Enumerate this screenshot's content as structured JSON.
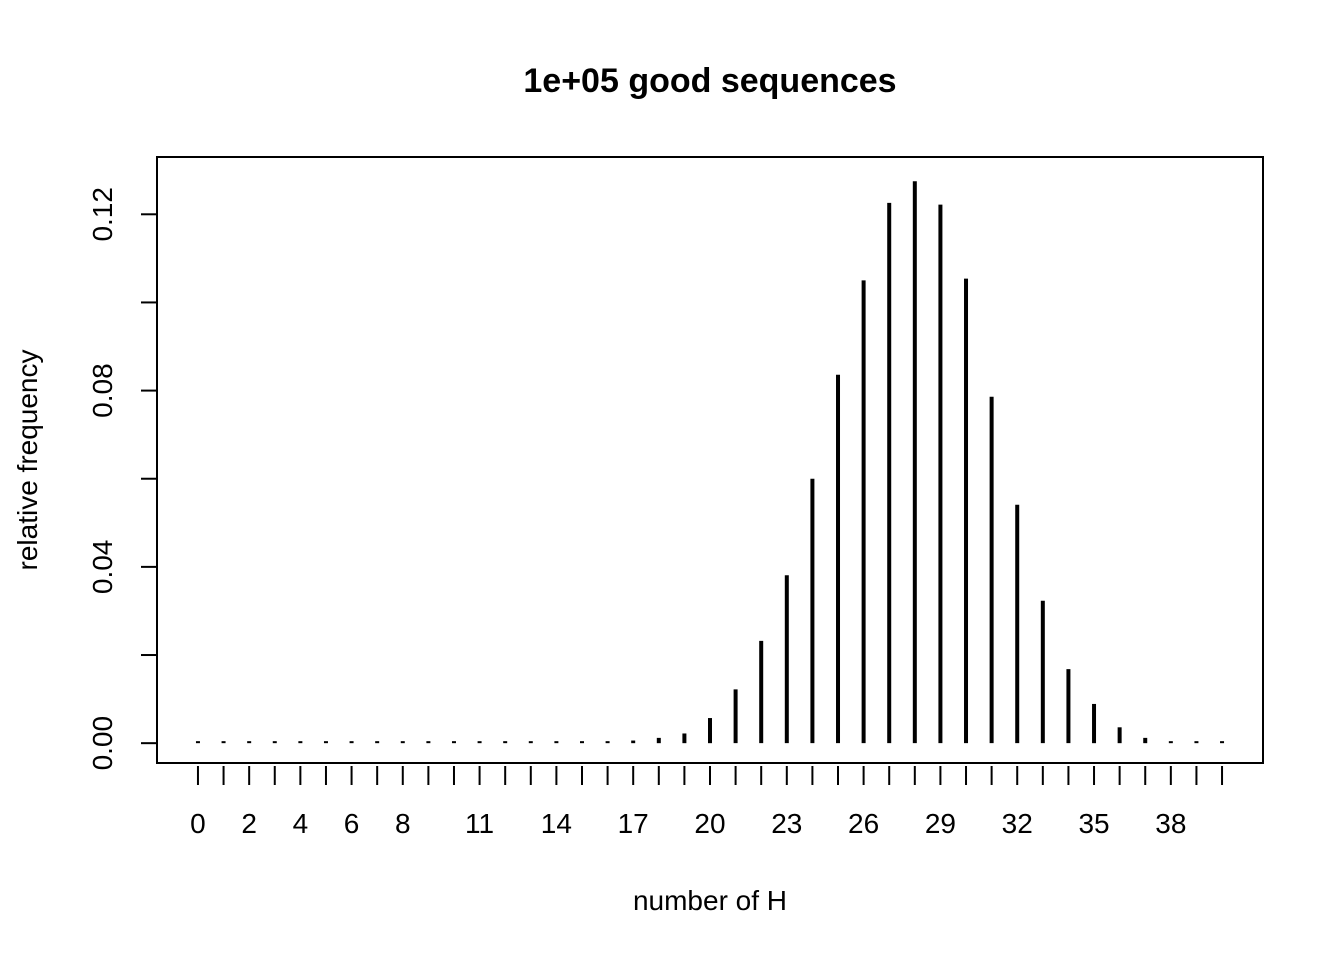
{
  "chart_data": {
    "type": "bar",
    "title": "1e+05 good sequences",
    "xlabel": "number of H",
    "ylabel": "relative frequency",
    "x": [
      0,
      1,
      2,
      3,
      4,
      5,
      6,
      7,
      8,
      9,
      10,
      11,
      12,
      13,
      14,
      15,
      16,
      17,
      18,
      19,
      20,
      21,
      22,
      23,
      24,
      25,
      26,
      27,
      28,
      29,
      30,
      31,
      32,
      33,
      34,
      35,
      36,
      37,
      38,
      39,
      40
    ],
    "values": [
      0,
      0,
      0,
      0,
      0,
      0,
      0,
      0,
      0,
      0,
      0,
      0,
      0,
      0,
      0,
      0,
      0,
      0.0006,
      0.0012,
      0.0022,
      0.0057,
      0.0122,
      0.0232,
      0.0381,
      0.06,
      0.0836,
      0.105,
      0.1226,
      0.1275,
      0.1222,
      0.1054,
      0.0786,
      0.0541,
      0.0323,
      0.0168,
      0.0089,
      0.0036,
      0.0012,
      0.0004,
      0.0002,
      0.0001
    ],
    "x_tick_labels": [
      "0",
      "2",
      "4",
      "6",
      "8",
      "11",
      "14",
      "17",
      "20",
      "23",
      "26",
      "29",
      "32",
      "35",
      "38"
    ],
    "x_tick_label_positions": [
      0,
      2,
      4,
      6,
      8,
      11,
      14,
      17,
      20,
      23,
      26,
      29,
      32,
      35,
      38
    ],
    "y_ticks": [
      0.0,
      0.02,
      0.04,
      0.06,
      0.08,
      0.1,
      0.12
    ],
    "y_tick_labels": [
      "0.00",
      "0.04",
      "0.08",
      "0.12"
    ],
    "y_tick_label_values": [
      0.0,
      0.04,
      0.08,
      0.12
    ],
    "ylim": [
      -0.0045,
      0.133
    ],
    "xlim": [
      -1.6,
      41.6
    ],
    "grid": false,
    "legend": "none"
  }
}
